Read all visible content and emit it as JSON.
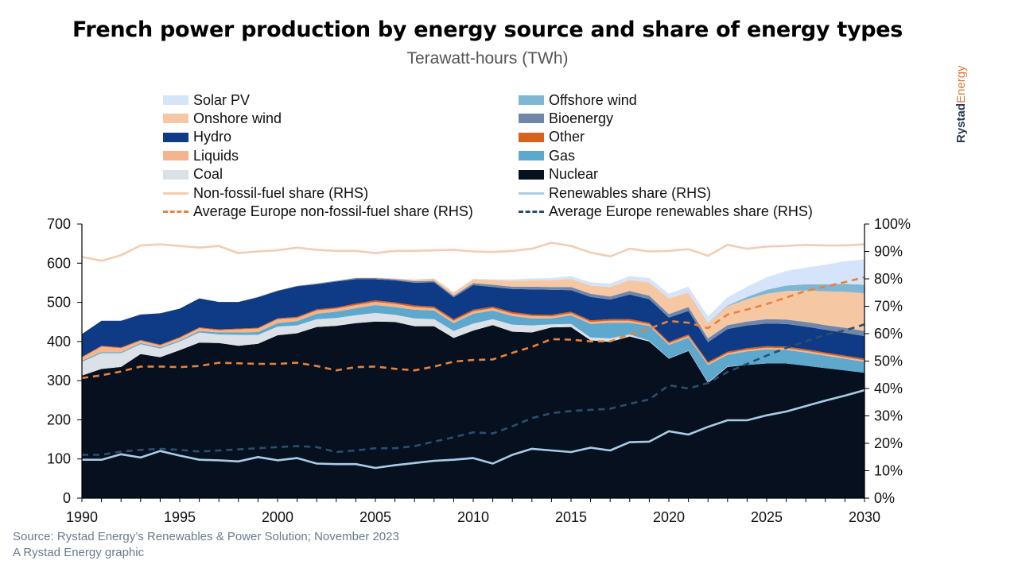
{
  "header": {
    "title": "French power production by energy source and share of energy types",
    "subtitle": "Terawatt-hours (TWh)"
  },
  "brand": {
    "part1": "Rystad",
    "part2": "Energy"
  },
  "footer": {
    "source": "Source: Rystad Energy’s Renewables & Power Solution; November 2023",
    "credit": "A Rystad Energy graphic"
  },
  "legend": [
    {
      "label": "Solar PV",
      "color": "#d6e4fb",
      "kind": "box"
    },
    {
      "label": "Offshore wind",
      "color": "#7fb6d4",
      "kind": "box"
    },
    {
      "label": "Onshore wind",
      "color": "#f6c7a3",
      "kind": "box"
    },
    {
      "label": "Bioenergy",
      "color": "#6f87a8",
      "kind": "box"
    },
    {
      "label": "Hydro",
      "color": "#0e3a86",
      "kind": "box"
    },
    {
      "label": "Other",
      "color": "#d7621e",
      "kind": "box"
    },
    {
      "label": "Liquids",
      "color": "#f3b48e",
      "kind": "box"
    },
    {
      "label": "Gas",
      "color": "#5ea7cd",
      "kind": "box"
    },
    {
      "label": "Coal",
      "color": "#dbe1e7",
      "kind": "box"
    },
    {
      "label": "Nuclear",
      "color": "#06101f",
      "kind": "box"
    },
    {
      "label": "Non-fossil-fuel share (RHS)",
      "color": "#f2cdb3",
      "kind": "line"
    },
    {
      "label": "Renewables share (RHS)",
      "color": "#a9cde6",
      "kind": "line"
    },
    {
      "label": "Average Europe non-fossil-fuel share (RHS)",
      "color": "#e8823c",
      "kind": "dash"
    },
    {
      "label": "Average Europe renewables share (RHS)",
      "color": "#2b4f6e",
      "kind": "dash"
    }
  ],
  "chart_data": {
    "type": "area",
    "x": [
      1990,
      1991,
      1992,
      1993,
      1994,
      1995,
      1996,
      1997,
      1998,
      1999,
      2000,
      2001,
      2002,
      2003,
      2004,
      2005,
      2006,
      2007,
      2008,
      2009,
      2010,
      2011,
      2012,
      2013,
      2014,
      2015,
      2016,
      2017,
      2018,
      2019,
      2020,
      2021,
      2022,
      2023,
      2024,
      2025,
      2026,
      2027,
      2028,
      2029,
      2030
    ],
    "xticks": [
      1990,
      1995,
      2000,
      2005,
      2010,
      2015,
      2020,
      2025,
      2030
    ],
    "ylim": [
      0,
      700
    ],
    "yticks": [
      0,
      100,
      200,
      300,
      400,
      500,
      600,
      700
    ],
    "y2lim": [
      0,
      1
    ],
    "y2ticks": [
      "0%",
      "10%",
      "20%",
      "30%",
      "40%",
      "50%",
      "60%",
      "70%",
      "80%",
      "90%",
      "100%"
    ],
    "stack_series": [
      {
        "name": "Nuclear",
        "color": "#06101f",
        "values": [
          313,
          330,
          335,
          368,
          360,
          378,
          397,
          396,
          389,
          394,
          416,
          421,
          437,
          440,
          447,
          451,
          450,
          439,
          439,
          409,
          428,
          442,
          425,
          423,
          436,
          437,
          403,
          399,
          413,
          400,
          356,
          376,
          294,
          335,
          340,
          344,
          344,
          338,
          332,
          326,
          320
        ]
      },
      {
        "name": "Coal",
        "color": "#dbe1e7",
        "values": [
          35,
          40,
          35,
          25,
          22,
          22,
          26,
          22,
          28,
          23,
          22,
          20,
          20,
          20,
          20,
          22,
          18,
          20,
          18,
          18,
          18,
          15,
          18,
          18,
          8,
          8,
          7,
          9,
          5,
          2,
          1,
          1,
          2,
          1,
          0,
          0,
          0,
          0,
          0,
          0,
          0
        ]
      },
      {
        "name": "Gas",
        "color": "#5ea7cd",
        "values": [
          3,
          3,
          3,
          3,
          3,
          3,
          4,
          5,
          6,
          7,
          9,
          11,
          14,
          16,
          18,
          20,
          20,
          22,
          22,
          20,
          25,
          22,
          22,
          18,
          15,
          22,
          35,
          40,
          30,
          38,
          34,
          33,
          44,
          30,
          35,
          36,
          35,
          34,
          32,
          30,
          28
        ]
      },
      {
        "name": "Liquids",
        "color": "#f3b48e",
        "values": [
          8,
          14,
          10,
          6,
          5,
          6,
          7,
          6,
          8,
          9,
          10,
          8,
          8,
          8,
          8,
          8,
          8,
          7,
          6,
          6,
          6,
          6,
          6,
          6,
          5,
          5,
          5,
          5,
          5,
          4,
          4,
          4,
          4,
          4,
          4,
          4,
          4,
          4,
          4,
          4,
          4
        ]
      },
      {
        "name": "Other",
        "color": "#d7621e",
        "values": [
          2,
          2,
          2,
          2,
          2,
          2,
          2,
          2,
          2,
          2,
          2,
          3,
          3,
          3,
          4,
          4,
          4,
          4,
          4,
          4,
          4,
          4,
          4,
          4,
          4,
          4,
          4,
          4,
          4,
          4,
          4,
          4,
          4,
          4,
          4,
          4,
          4,
          4,
          4,
          4,
          4
        ]
      },
      {
        "name": "Hydro",
        "color": "#0e3a86",
        "values": [
          58,
          64,
          68,
          65,
          80,
          73,
          74,
          70,
          68,
          78,
          70,
          78,
          64,
          66,
          62,
          54,
          56,
          58,
          62,
          56,
          63,
          50,
          59,
          64,
          64,
          55,
          60,
          50,
          63,
          60,
          62,
          60,
          50,
          58,
          58,
          58,
          58,
          58,
          58,
          58,
          58
        ]
      },
      {
        "name": "Bioenergy",
        "color": "#6f87a8",
        "values": [
          0,
          0,
          0,
          0,
          0,
          0,
          0,
          0,
          0,
          1,
          1,
          1,
          2,
          2,
          3,
          3,
          3,
          4,
          4,
          4,
          5,
          6,
          6,
          7,
          7,
          8,
          8,
          8,
          9,
          9,
          9,
          10,
          10,
          10,
          10,
          11,
          11,
          12,
          12,
          13,
          13
        ]
      },
      {
        "name": "Onshore wind",
        "color": "#f6c7a3",
        "values": [
          0,
          0,
          0,
          0,
          0,
          0,
          0,
          0,
          0,
          0,
          0,
          0,
          0,
          0,
          1,
          1,
          2,
          4,
          6,
          8,
          10,
          12,
          15,
          16,
          17,
          21,
          21,
          24,
          28,
          34,
          40,
          37,
          38,
          48,
          57,
          65,
          73,
          80,
          86,
          92,
          96
        ]
      },
      {
        "name": "Offshore wind",
        "color": "#7fb6d4",
        "values": [
          0,
          0,
          0,
          0,
          0,
          0,
          0,
          0,
          0,
          0,
          0,
          0,
          0,
          0,
          0,
          0,
          0,
          0,
          0,
          0,
          0,
          0,
          0,
          0,
          0,
          0,
          0,
          0,
          0,
          0,
          0,
          0,
          1,
          2,
          6,
          10,
          14,
          16,
          18,
          20,
          22
        ]
      },
      {
        "name": "Solar PV",
        "color": "#d6e4fb",
        "values": [
          0,
          0,
          0,
          0,
          0,
          0,
          0,
          0,
          0,
          0,
          0,
          0,
          0,
          0,
          0,
          0,
          0,
          0,
          0,
          0,
          1,
          2,
          4,
          5,
          6,
          7,
          8,
          9,
          10,
          11,
          12,
          15,
          17,
          21,
          26,
          32,
          37,
          43,
          50,
          58,
          65
        ]
      }
    ],
    "share_series": [
      {
        "name": "Non-fossil-fuel share (RHS)",
        "color": "#f2cdb3",
        "dash": false,
        "values": [
          0.88,
          0.866,
          0.886,
          0.922,
          0.926,
          0.92,
          0.914,
          0.92,
          0.894,
          0.9,
          0.904,
          0.914,
          0.906,
          0.902,
          0.902,
          0.894,
          0.902,
          0.902,
          0.904,
          0.906,
          0.9,
          0.898,
          0.902,
          0.91,
          0.932,
          0.92,
          0.896,
          0.882,
          0.91,
          0.9,
          0.902,
          0.908,
          0.884,
          0.924,
          0.91,
          0.918,
          0.92,
          0.924,
          0.922,
          0.922,
          0.926
        ]
      },
      {
        "name": "Renewables share (RHS)",
        "color": "#a9cde6",
        "dash": false,
        "values": [
          0.14,
          0.14,
          0.16,
          0.148,
          0.172,
          0.155,
          0.14,
          0.138,
          0.134,
          0.15,
          0.138,
          0.146,
          0.126,
          0.124,
          0.124,
          0.11,
          0.12,
          0.128,
          0.136,
          0.14,
          0.146,
          0.126,
          0.158,
          0.18,
          0.174,
          0.168,
          0.184,
          0.174,
          0.204,
          0.206,
          0.244,
          0.232,
          0.26,
          0.284,
          0.284,
          0.302,
          0.316,
          0.336,
          0.356,
          0.374,
          0.394
        ]
      },
      {
        "name": "Average Europe non-fossil-fuel share (RHS)",
        "color": "#e8823c",
        "dash": true,
        "values": [
          0.438,
          0.448,
          0.462,
          0.48,
          0.48,
          0.478,
          0.482,
          0.494,
          0.492,
          0.49,
          0.49,
          0.494,
          0.482,
          0.466,
          0.478,
          0.48,
          0.472,
          0.466,
          0.48,
          0.498,
          0.504,
          0.506,
          0.53,
          0.552,
          0.58,
          0.578,
          0.572,
          0.572,
          0.598,
          0.618,
          0.646,
          0.64,
          0.62,
          0.67,
          0.688,
          0.708,
          0.732,
          0.756,
          0.772,
          0.788,
          0.806
        ]
      },
      {
        "name": "Average Europe renewables share (RHS)",
        "color": "#2b4f6e",
        "dash": true,
        "values": [
          0.158,
          0.158,
          0.17,
          0.176,
          0.18,
          0.176,
          0.17,
          0.174,
          0.178,
          0.182,
          0.186,
          0.19,
          0.186,
          0.168,
          0.174,
          0.182,
          0.182,
          0.19,
          0.206,
          0.222,
          0.24,
          0.236,
          0.262,
          0.292,
          0.31,
          0.318,
          0.322,
          0.326,
          0.344,
          0.36,
          0.412,
          0.4,
          0.42,
          0.46,
          0.49,
          0.52,
          0.548,
          0.572,
          0.596,
          0.612,
          0.634
        ]
      }
    ]
  }
}
